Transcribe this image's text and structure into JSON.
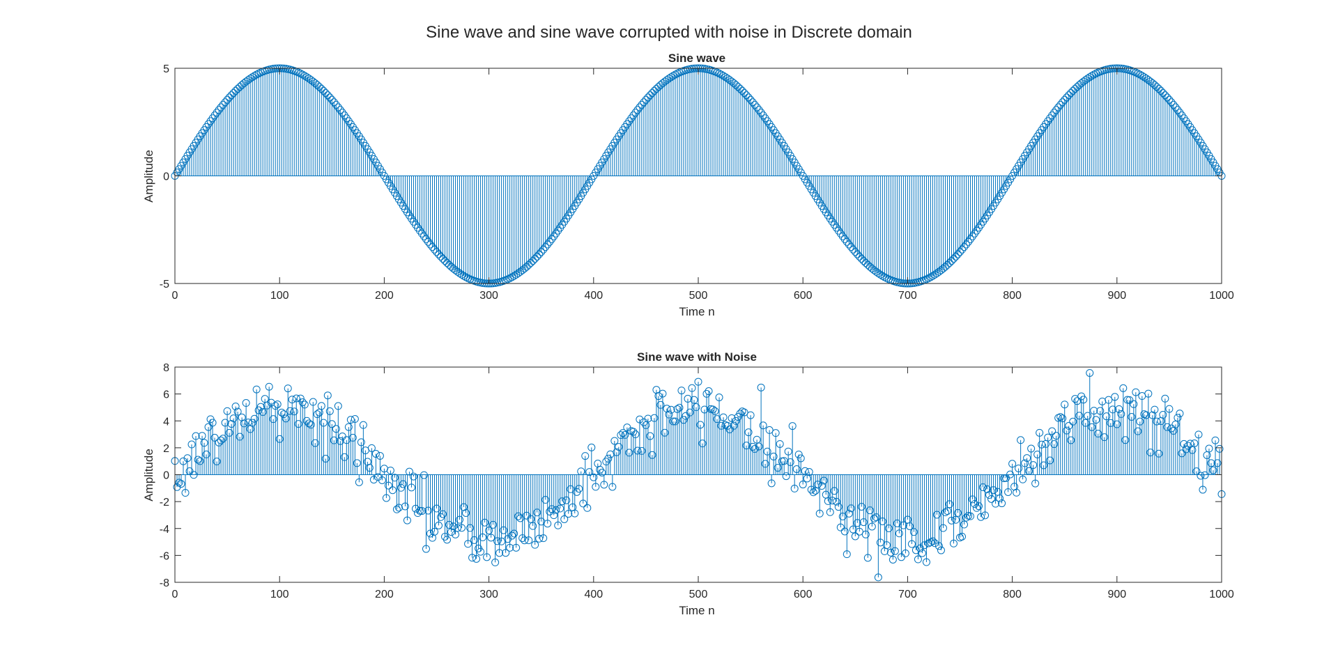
{
  "figure": {
    "suptitle": "Sine wave and sine wave corrupted with noise in Discrete domain"
  },
  "style": {
    "stem_color": "#0072BD",
    "axes_color": "#262626",
    "background": "#ffffff"
  },
  "chart_data": [
    {
      "type": "stem",
      "title": "Sine wave",
      "xlabel": "Time n",
      "ylabel": "Amplitude",
      "xlim": [
        0,
        1000
      ],
      "ylim": [
        -5,
        5
      ],
      "xticks": [
        0,
        100,
        200,
        300,
        400,
        500,
        600,
        700,
        800,
        900,
        1000
      ],
      "yticks": [
        -5,
        0,
        5
      ],
      "grid": false,
      "marker": "o",
      "series": [
        {
          "x_range": [
            0,
            1000
          ],
          "x_step": 2,
          "function": "y = 5*sin(2*pi*n/400)",
          "amplitude": 5,
          "period": 400
        }
      ]
    },
    {
      "type": "stem",
      "title": "Sine wave with Noise",
      "xlabel": "Time n",
      "ylabel": "Amplitude",
      "xlim": [
        0,
        1000
      ],
      "ylim": [
        -8,
        8
      ],
      "xticks": [
        0,
        100,
        200,
        300,
        400,
        500,
        600,
        700,
        800,
        900,
        1000
      ],
      "yticks": [
        -8,
        -6,
        -4,
        -2,
        0,
        2,
        4,
        6,
        8
      ],
      "grid": false,
      "marker": "o",
      "series": [
        {
          "x_range": [
            0,
            1000
          ],
          "x_step": 2,
          "function": "y = 5*sin(2*pi*n/400) + noise",
          "amplitude": 5,
          "period": 400,
          "noise_std": 1.1
        }
      ]
    }
  ]
}
